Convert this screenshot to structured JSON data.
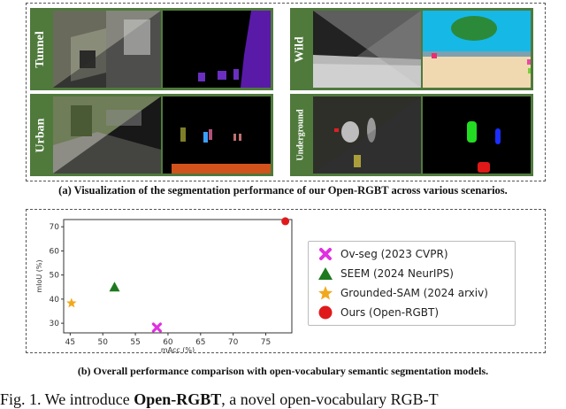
{
  "panel_a": {
    "scenes": [
      {
        "label": "Tunnel"
      },
      {
        "label": "Wild"
      },
      {
        "label": "Urban"
      },
      {
        "label": "Underground"
      }
    ],
    "caption_prefix": "(a) Visualization of the segmentation performance of  our ",
    "caption_bold": "Open-RGBT",
    "caption_suffix": " across various scenarios."
  },
  "panel_b": {
    "caption": "(b) Overall performance comparison with open-vocabulary semantic segmentation models."
  },
  "figure_caption": {
    "prefix": "Fig. 1.    We introduce ",
    "bold": "Open-RGBT",
    "suffix": ", a novel open-vocabulary RGB-T"
  },
  "colors": {
    "frame_green": "#4f7a3c",
    "ovseg": "#e030e0",
    "seem": "#1f7a1f",
    "grounded_sam": "#f2a81d",
    "ours": "#e01a1a"
  },
  "chart_data": {
    "type": "scatter",
    "xlabel": "mAcc (%)",
    "ylabel": "mIoU (%)",
    "xlim": [
      44,
      79
    ],
    "ylim": [
      26,
      73
    ],
    "xticks": [
      45,
      50,
      55,
      60,
      65,
      70,
      75
    ],
    "yticks": [
      30,
      40,
      50,
      60,
      70
    ],
    "grid": false,
    "legend_position": "right",
    "series": [
      {
        "name": "Ov-seg (2023 CVPR)",
        "marker": "x",
        "color": "#e030e0",
        "x": 58.3,
        "y": 28.2
      },
      {
        "name": "SEEM (2024 NeurIPS)",
        "marker": "triangle",
        "color": "#1f7a1f",
        "x": 51.8,
        "y": 45.0
      },
      {
        "name": "Grounded-SAM (2024 arxiv)",
        "marker": "star",
        "color": "#f2a81d",
        "x": 45.2,
        "y": 38.3
      },
      {
        "name": "Ours (Open-RGBT)",
        "marker": "circle",
        "color": "#e01a1a",
        "x": 78.0,
        "y": 72.3
      }
    ]
  }
}
